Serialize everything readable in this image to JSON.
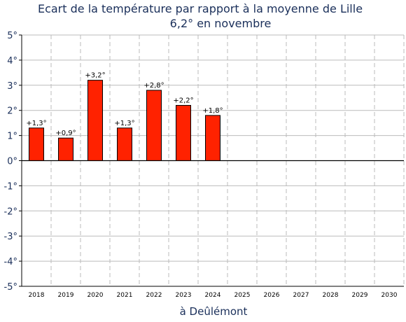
{
  "chart_data": {
    "type": "bar",
    "title": "Ecart de la température par rapport à la moyenne de Lille",
    "subtitle": "6,2° en novembre",
    "xlabel": "à Deûlémont",
    "ylabel": "",
    "ylim": [
      -5,
      5
    ],
    "grid": true,
    "categories": [
      "2018",
      "2019",
      "2020",
      "2021",
      "2022",
      "2023",
      "2024",
      "2025",
      "2026",
      "2027",
      "2028",
      "2029",
      "2030"
    ],
    "values": [
      1.3,
      0.9,
      3.2,
      1.3,
      2.8,
      2.2,
      1.8,
      null,
      null,
      null,
      null,
      null,
      null
    ],
    "data_labels": [
      "+1,3°",
      "+0,9°",
      "+3,2°",
      "+1,3°",
      "+2,8°",
      "+2,2°",
      "+1,8°",
      "",
      "",
      "",
      "",
      "",
      ""
    ],
    "y_tick_labels": [
      "5°",
      "4°",
      "3°",
      "2°",
      "1°",
      "0°",
      "-1°",
      "-2°",
      "-3°",
      "-4°",
      "-5°"
    ],
    "colors": {
      "bar": "#ff2200",
      "bar_stroke": "#000000",
      "title": "#1a2f5a",
      "grid": "#bbbbbb"
    }
  }
}
